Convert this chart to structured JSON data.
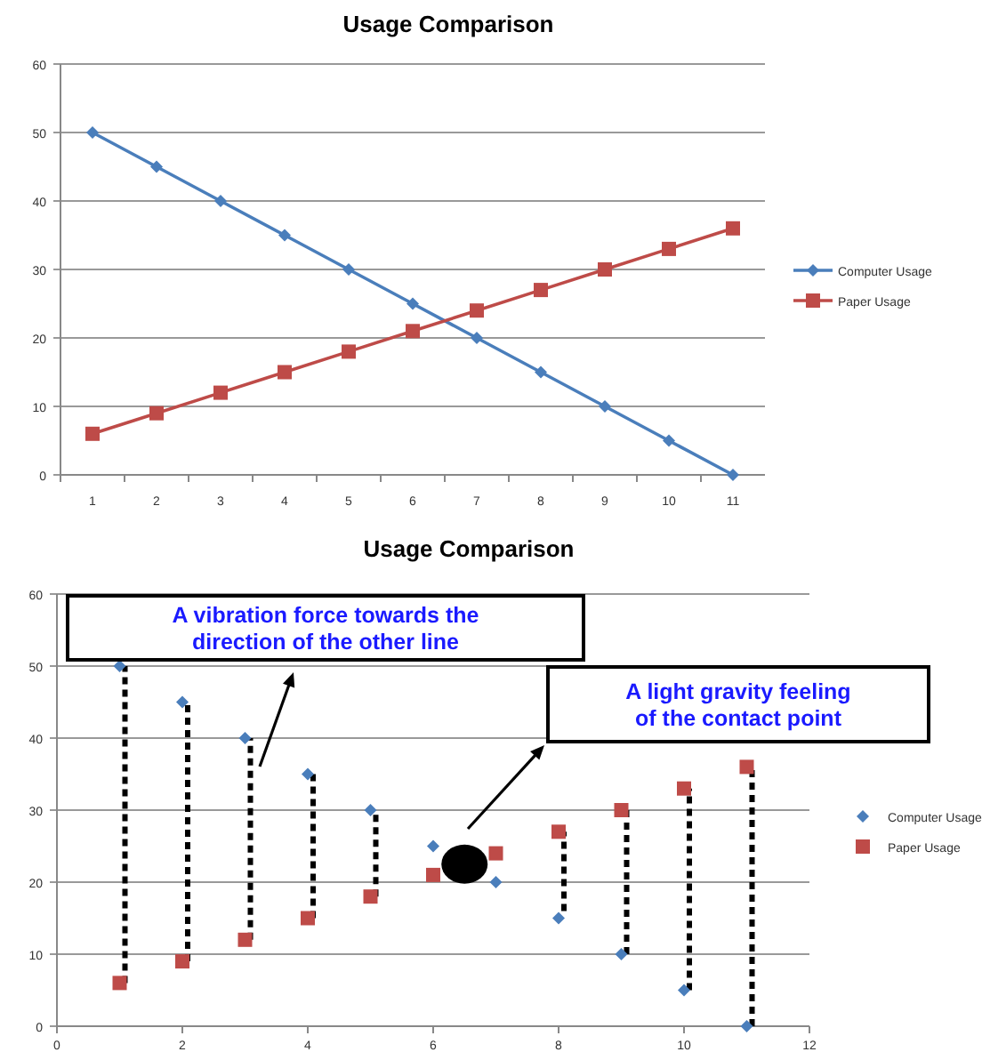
{
  "chart_data": [
    {
      "type": "line",
      "title": "Usage Comparison",
      "categories": [
        "1",
        "2",
        "3",
        "4",
        "5",
        "6",
        "7",
        "8",
        "9",
        "10",
        "11"
      ],
      "series": [
        {
          "name": "Computer Usage",
          "color": "#4a7ebb",
          "marker": "diamond",
          "values": [
            50,
            45,
            40,
            35,
            30,
            25,
            20,
            15,
            10,
            5,
            0
          ]
        },
        {
          "name": "Paper Usage",
          "color": "#be4b48",
          "marker": "square",
          "values": [
            6,
            9,
            12,
            15,
            18,
            21,
            24,
            27,
            30,
            33,
            36
          ]
        }
      ],
      "ylim": [
        0,
        60
      ],
      "yticks": [
        0,
        10,
        20,
        30,
        40,
        50,
        60
      ],
      "grid": "y",
      "legend": "right"
    },
    {
      "type": "scatter",
      "title": "Usage Comparison",
      "x": [
        1,
        2,
        3,
        4,
        5,
        6,
        7,
        8,
        9,
        10,
        11
      ],
      "series": [
        {
          "name": "Computer Usage",
          "color": "#4a7ebb",
          "marker": "diamond",
          "values": [
            50,
            45,
            40,
            35,
            30,
            25,
            20,
            15,
            10,
            5,
            0
          ],
          "errors": [
            [
              6,
              50
            ],
            [
              9,
              45
            ],
            [
              12,
              40
            ],
            [
              15,
              35
            ],
            [
              18,
              30
            ],
            null,
            null,
            [
              16,
              27
            ],
            [
              10,
              30
            ],
            [
              5,
              33
            ],
            [
              0,
              36
            ]
          ]
        },
        {
          "name": "Paper Usage",
          "color": "#be4b48",
          "marker": "square",
          "values": [
            6,
            9,
            12,
            15,
            18,
            21,
            24,
            27,
            30,
            33,
            36
          ]
        }
      ],
      "xlim": [
        0,
        12
      ],
      "xticks": [
        0,
        2,
        4,
        6,
        8,
        10,
        12
      ],
      "ylim": [
        0,
        60
      ],
      "yticks": [
        0,
        10,
        20,
        30,
        40,
        50,
        60
      ],
      "grid": "y",
      "legend": "right",
      "annotations": [
        "A vibration force towards the direction of the other line",
        "A light gravity feeling of the contact point"
      ]
    }
  ]
}
